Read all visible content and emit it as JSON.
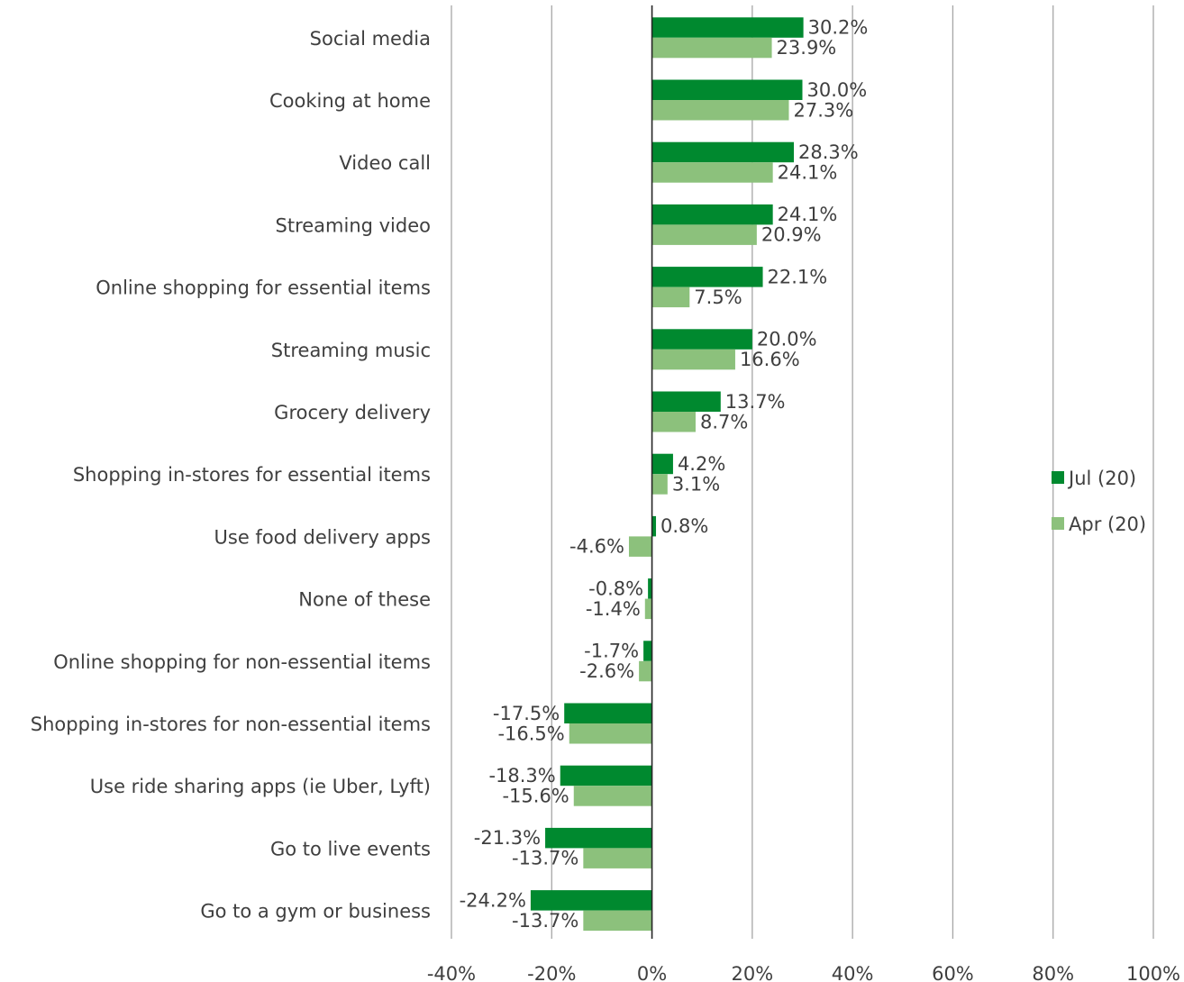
{
  "chart_data": {
    "type": "bar",
    "orientation": "horizontal",
    "categories": [
      "Social media",
      "Cooking at home",
      "Video call",
      "Streaming video",
      "Online shopping for essential items",
      "Streaming music",
      "Grocery delivery",
      "Shopping in-stores for essential items",
      "Use food delivery apps",
      "None of these",
      "Online shopping for non-essential items",
      "Shopping in-stores for non-essential items",
      "Use ride sharing apps (ie Uber, Lyft)",
      "Go to live events",
      "Go to a gym or business"
    ],
    "series": [
      {
        "name": "Jul (20)",
        "color": "#00892f",
        "values": [
          30.2,
          30.0,
          28.3,
          24.1,
          22.1,
          20.0,
          13.7,
          4.2,
          0.8,
          -0.8,
          -1.7,
          -17.5,
          -18.3,
          -21.3,
          -24.2
        ],
        "labels": [
          "30.2%",
          "30.0%",
          "28.3%",
          "24.1%",
          "22.1%",
          "20.0%",
          "13.7%",
          "4.2%",
          "0.8%",
          "-0.8%",
          "-1.7%",
          "-17.5%",
          "-18.3%",
          "-21.3%",
          "-24.2%"
        ]
      },
      {
        "name": "Apr (20)",
        "color": "#8cc17c",
        "values": [
          23.9,
          27.3,
          24.1,
          20.9,
          7.5,
          16.6,
          8.7,
          3.1,
          -4.6,
          -1.4,
          -2.6,
          -16.5,
          -15.6,
          -13.7,
          -13.7
        ],
        "labels": [
          "23.9%",
          "27.3%",
          "24.1%",
          "20.9%",
          "7.5%",
          "16.6%",
          "8.7%",
          "3.1%",
          "-4.6%",
          "-1.4%",
          "-2.6%",
          "-16.5%",
          "-15.6%",
          "-13.7%",
          "-13.7%"
        ]
      }
    ],
    "xlim": [
      -40,
      100
    ],
    "x_ticks": [
      -40,
      -20,
      0,
      20,
      40,
      60,
      80,
      100
    ],
    "x_tick_labels": [
      "-40%",
      "-20%",
      "0%",
      "20%",
      "40%",
      "60%",
      "80%",
      "100%"
    ],
    "grid": "vertical",
    "legend_position": "right",
    "title": "",
    "xlabel": "",
    "ylabel": ""
  }
}
